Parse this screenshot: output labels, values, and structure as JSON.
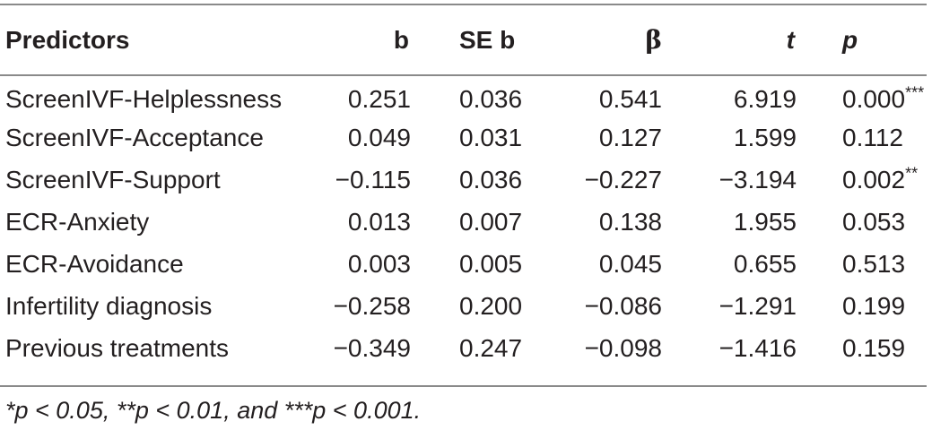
{
  "table": {
    "headers": {
      "predictors": "Predictors",
      "b": "b",
      "se_b": "SE b",
      "beta": "β",
      "t": "t",
      "p": "p"
    },
    "rows": [
      {
        "predictor": "ScreenIVF-Helplessness",
        "b": "0.251",
        "se_b": "0.036",
        "beta": "0.541",
        "t": "6.919",
        "p": "0.000",
        "sig": "***"
      },
      {
        "predictor": "ScreenIVF-Acceptance",
        "b": "0.049",
        "se_b": "0.031",
        "beta": "0.127",
        "t": "1.599",
        "p": "0.112",
        "sig": ""
      },
      {
        "predictor": "ScreenIVF-Support",
        "b": "−0.115",
        "se_b": "0.036",
        "beta": "−0.227",
        "t": "−3.194",
        "p": "0.002",
        "sig": "**"
      },
      {
        "predictor": "ECR-Anxiety",
        "b": "0.013",
        "se_b": "0.007",
        "beta": "0.138",
        "t": "1.955",
        "p": "0.053",
        "sig": ""
      },
      {
        "predictor": "ECR-Avoidance",
        "b": "0.003",
        "se_b": "0.005",
        "beta": "0.045",
        "t": "0.655",
        "p": "0.513",
        "sig": ""
      },
      {
        "predictor": "Infertility diagnosis",
        "b": "−0.258",
        "se_b": "0.200",
        "beta": "−0.086",
        "t": "−1.291",
        "p": "0.199",
        "sig": ""
      },
      {
        "predictor": "Previous treatments",
        "b": "−0.349",
        "se_b": "0.247",
        "beta": "−0.098",
        "t": "−1.416",
        "p": "0.159",
        "sig": ""
      }
    ]
  },
  "footnote": "*p < 0.05, **p < 0.01, and ***p < 0.001."
}
